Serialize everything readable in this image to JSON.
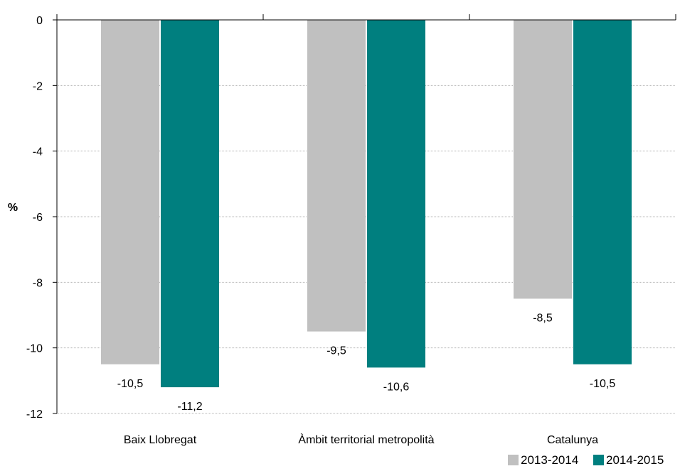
{
  "chart_data": {
    "type": "bar",
    "categories": [
      "Baix Llobregat",
      "Àmbit territorial metropolità",
      "Catalunya"
    ],
    "series": [
      {
        "name": "2013-2014",
        "values": [
          -10.5,
          -9.5,
          -8.5
        ],
        "labels": [
          "-10,5",
          "-9,5",
          "-8,5"
        ],
        "color": "#c0c0c0"
      },
      {
        "name": "2014-2015",
        "values": [
          -11.2,
          -10.6,
          -10.5
        ],
        "labels": [
          "-11,2",
          "-10,6",
          "-10,5"
        ],
        "color": "#007f7f"
      }
    ],
    "ylabel": "%",
    "ylim": [
      -12,
      0
    ],
    "yticks": [
      0,
      -2,
      -4,
      -6,
      -8,
      -10,
      -12
    ],
    "ytick_labels": [
      "0",
      "-2",
      "-4",
      "-6",
      "-8",
      "-10",
      "-12"
    ],
    "grid": true,
    "legend_position": "bottom-right"
  }
}
